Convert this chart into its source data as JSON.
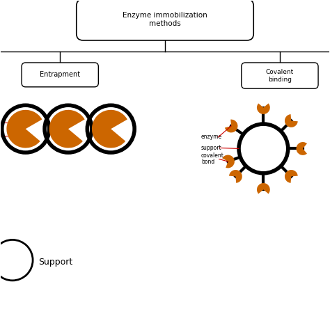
{
  "title": "Enzyme immobilization\nmethods",
  "bg_color": "#ffffff",
  "orange": "#cc6600",
  "black": "#000000",
  "red": "#cc0000",
  "entrapment_label": "Entrapment",
  "covalent_label": "Covalent\nbinding",
  "support_label": "Support",
  "enzyme_label": "enzyme",
  "support_annotation": "support",
  "covalent_bond_label": "covalent\nbond",
  "figsize": [
    4.74,
    4.74
  ],
  "dpi": 100,
  "xlim": [
    0,
    10
  ],
  "ylim": [
    0,
    10
  ]
}
